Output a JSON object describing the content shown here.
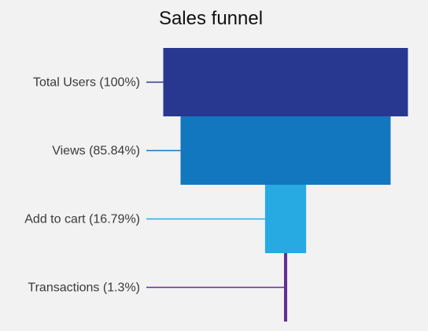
{
  "chart_data": {
    "type": "funnel",
    "title": "Sales funnel",
    "grid": false,
    "legend": "none",
    "stages": [
      {
        "label": "Total Users (100%)",
        "name": "Total Users",
        "percent": 100,
        "color": "#283891"
      },
      {
        "label": "Views (85.84%)",
        "name": "Views",
        "percent": 85.84,
        "color": "#1277bf"
      },
      {
        "label": "Add to cart (16.79%)",
        "name": "Add to cart",
        "percent": 16.79,
        "color": "#27aae1"
      },
      {
        "label": "Transactions (1.3%)",
        "name": "Transactions",
        "percent": 1.3,
        "color": "#662d91"
      }
    ]
  }
}
